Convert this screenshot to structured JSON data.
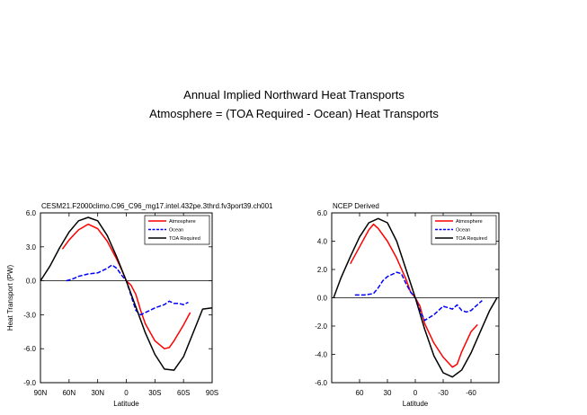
{
  "figure": {
    "title": "Annual Implied Northward Heat Transports",
    "subtitle": "Atmosphere = (TOA Required - Ocean) Heat Transports"
  },
  "chart_data": [
    {
      "type": "line",
      "title": "CESM21.F2000climo.C96_C96_mg17.intel.432pe.3thrd.fv3port39.ch001",
      "xlabel": "Latitude",
      "ylabel": "Heat Transport (PW)",
      "xlim": [
        90,
        -90
      ],
      "ylim": [
        -9.0,
        6.0
      ],
      "xticks": [
        90,
        60,
        30,
        0,
        -30,
        -60,
        -90
      ],
      "xtick_labels": [
        "90N",
        "60N",
        "30N",
        "0",
        "30S",
        "60S",
        "90S"
      ],
      "yticks": [
        -9.0,
        -6.0,
        -3.0,
        0.0,
        3.0,
        6.0
      ],
      "ytick_labels": [
        "-9.0",
        "-6.0",
        "-3.0",
        "0.0",
        "3.0",
        "6.0"
      ],
      "zero_line": true,
      "legend": {
        "position": "top-right",
        "entries": [
          "Atmosphere",
          "Ocean",
          "TOA Required"
        ]
      },
      "series": [
        {
          "name": "Atmosphere",
          "color": "#ff0000",
          "dash": "solid",
          "x": [
            67,
            60,
            50,
            40,
            30,
            20,
            10,
            5,
            0,
            -5,
            -10,
            -15,
            -20,
            -30,
            -40,
            -45,
            -50,
            -60,
            -67
          ],
          "y": [
            2.8,
            3.6,
            4.5,
            5.0,
            4.6,
            3.5,
            1.9,
            1.0,
            0.0,
            -0.4,
            -1.2,
            -2.6,
            -3.8,
            -5.3,
            -6.0,
            -5.9,
            -5.3,
            -3.9,
            -2.8
          ]
        },
        {
          "name": "Ocean",
          "color": "#0000ff",
          "dash": "dashed",
          "x": [
            63,
            55,
            50,
            40,
            30,
            20,
            15,
            10,
            5,
            0,
            -5,
            -10,
            -15,
            -20,
            -30,
            -40,
            -45,
            -50,
            -55,
            -60,
            -65
          ],
          "y": [
            0.0,
            0.2,
            0.4,
            0.6,
            0.7,
            1.1,
            1.4,
            1.1,
            0.5,
            0.0,
            -1.3,
            -2.6,
            -3.0,
            -2.8,
            -2.4,
            -2.1,
            -1.8,
            -2.0,
            -2.0,
            -2.1,
            -1.9
          ]
        },
        {
          "name": "TOA Required",
          "color": "#000000",
          "dash": "solid",
          "x": [
            90,
            80,
            70,
            60,
            50,
            40,
            30,
            20,
            10,
            0,
            -10,
            -20,
            -30,
            -40,
            -50,
            -60,
            -70,
            -80,
            -90
          ],
          "y": [
            0.0,
            1.3,
            2.9,
            4.3,
            5.3,
            5.6,
            5.3,
            4.0,
            2.1,
            0.0,
            -2.3,
            -4.6,
            -6.5,
            -7.8,
            -7.9,
            -6.7,
            -4.6,
            -2.5,
            -2.4
          ]
        }
      ]
    },
    {
      "type": "line",
      "title": "NCEP Derived",
      "xlabel": "Latitude",
      "ylabel": "",
      "xlim": [
        90,
        -90
      ],
      "ylim": [
        -6.0,
        6.0
      ],
      "xticks": [
        60,
        30,
        0,
        -30,
        -60
      ],
      "xtick_labels": [
        "60",
        "30",
        "0",
        "-30",
        "-60"
      ],
      "yticks": [
        -6.0,
        -4.0,
        -2.0,
        0.0,
        2.0,
        4.0,
        6.0
      ],
      "ytick_labels": [
        "-6.0",
        "-4.0",
        "-2.0",
        "0.0",
        "2.0",
        "4.0",
        "6.0"
      ],
      "zero_line": true,
      "legend": {
        "position": "top-right",
        "entries": [
          "Atmosphere",
          "Ocean",
          "TOA Required"
        ]
      },
      "series": [
        {
          "name": "Atmosphere",
          "color": "#ff0000",
          "dash": "solid",
          "x": [
            70,
            60,
            50,
            45,
            40,
            30,
            20,
            10,
            5,
            0,
            -5,
            -10,
            -20,
            -30,
            -40,
            -45,
            -50,
            -60,
            -67
          ],
          "y": [
            2.4,
            3.6,
            4.8,
            5.2,
            4.9,
            4.0,
            2.8,
            1.3,
            0.4,
            0.0,
            -0.6,
            -1.8,
            -3.2,
            -4.2,
            -4.9,
            -4.7,
            -3.8,
            -2.4,
            -1.9
          ]
        },
        {
          "name": "Ocean",
          "color": "#0000ff",
          "dash": "dashed",
          "x": [
            65,
            55,
            45,
            40,
            35,
            30,
            20,
            15,
            10,
            5,
            0,
            -5,
            -10,
            -20,
            -30,
            -40,
            -45,
            -50,
            -55,
            -60,
            -65,
            -72
          ],
          "y": [
            0.2,
            0.2,
            0.3,
            0.7,
            1.2,
            1.5,
            1.8,
            1.7,
            1.0,
            0.4,
            0.0,
            -0.9,
            -1.6,
            -1.2,
            -0.6,
            -0.8,
            -0.5,
            -0.9,
            -1.0,
            -0.9,
            -0.6,
            -0.2
          ]
        },
        {
          "name": "TOA Required",
          "color": "#000000",
          "dash": "solid",
          "x": [
            88,
            80,
            70,
            60,
            50,
            40,
            30,
            20,
            10,
            0,
            -10,
            -20,
            -30,
            -40,
            -50,
            -60,
            -70,
            -80,
            -88
          ],
          "y": [
            0.0,
            1.4,
            2.9,
            4.3,
            5.3,
            5.6,
            5.3,
            4.0,
            2.0,
            0.0,
            -2.2,
            -4.1,
            -5.3,
            -5.6,
            -5.1,
            -3.9,
            -2.4,
            -0.9,
            0.0
          ]
        }
      ]
    }
  ]
}
